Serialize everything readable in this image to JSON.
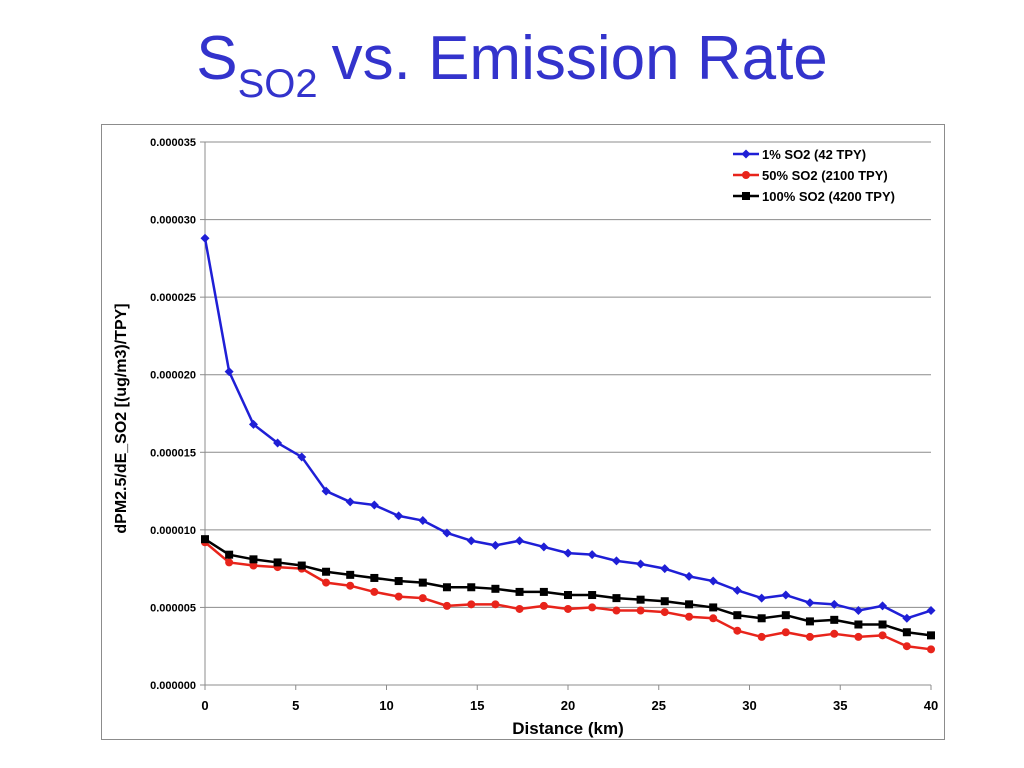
{
  "slide": {
    "title_main": "S",
    "title_sub": "SO2",
    "title_rest": "vs. Emission Rate"
  },
  "chart_data": {
    "type": "line",
    "xlabel": "Distance (km)",
    "ylabel": "dPM2.5/dE_SO2 [(ug/m3)/TPY]",
    "xlim": [
      0,
      40
    ],
    "ylim": [
      0,
      3.5e-05
    ],
    "x_ticks": [
      0,
      5,
      10,
      15,
      20,
      25,
      30,
      35,
      40
    ],
    "y_ticks": [
      0,
      5e-06,
      1e-05,
      1.5e-05,
      2e-05,
      2.5e-05,
      3e-05,
      3.5e-05
    ],
    "y_tick_labels": [
      "0.000000",
      "0.000005",
      "0.000010",
      "0.000015",
      "0.000020",
      "0.000025",
      "0.000030",
      "0.000035"
    ],
    "grid": "horizontal",
    "legend_position": "top-right",
    "x": [
      0,
      1.33,
      2.67,
      4,
      5.33,
      6.67,
      8,
      9.33,
      10.67,
      12,
      13.33,
      14.67,
      16,
      17.33,
      18.67,
      20,
      21.33,
      22.67,
      24,
      25.33,
      26.67,
      28,
      29.33,
      30.67,
      32,
      33.33,
      34.67,
      36,
      37.33,
      38.67,
      40
    ],
    "series": [
      {
        "name": "1% SO2 (42 TPY)",
        "color": "#1f1fd6",
        "marker": "diamond",
        "values": [
          2.88e-05,
          2.02e-05,
          1.68e-05,
          1.56e-05,
          1.47e-05,
          1.25e-05,
          1.18e-05,
          1.16e-05,
          1.09e-05,
          1.06e-05,
          9.8e-06,
          9.3e-06,
          9e-06,
          9.3e-06,
          8.9e-06,
          8.5e-06,
          8.4e-06,
          8e-06,
          7.8e-06,
          7.5e-06,
          7e-06,
          6.7e-06,
          6.1e-06,
          5.6e-06,
          5.8e-06,
          5.3e-06,
          5.2e-06,
          4.8e-06,
          5.1e-06,
          4.3e-06,
          4.8e-06
        ]
      },
      {
        "name": "50% SO2 (2100 TPY)",
        "color": "#e8241b",
        "marker": "circle",
        "values": [
          9.2e-06,
          7.9e-06,
          7.7e-06,
          7.6e-06,
          7.5e-06,
          6.6e-06,
          6.4e-06,
          6e-06,
          5.7e-06,
          5.6e-06,
          5.1e-06,
          5.2e-06,
          5.2e-06,
          4.9e-06,
          5.1e-06,
          4.9e-06,
          5e-06,
          4.8e-06,
          4.8e-06,
          4.7e-06,
          4.4e-06,
          4.3e-06,
          3.5e-06,
          3.1e-06,
          3.4e-06,
          3.1e-06,
          3.3e-06,
          3.1e-06,
          3.2e-06,
          2.5e-06,
          2.3e-06
        ]
      },
      {
        "name": "100% SO2 (4200 TPY)",
        "color": "#000000",
        "marker": "square",
        "values": [
          9.4e-06,
          8.4e-06,
          8.1e-06,
          7.9e-06,
          7.7e-06,
          7.3e-06,
          7.1e-06,
          6.9e-06,
          6.7e-06,
          6.6e-06,
          6.3e-06,
          6.3e-06,
          6.2e-06,
          6e-06,
          6e-06,
          5.8e-06,
          5.8e-06,
          5.6e-06,
          5.5e-06,
          5.4e-06,
          5.2e-06,
          5e-06,
          4.5e-06,
          4.3e-06,
          4.5e-06,
          4.1e-06,
          4.2e-06,
          3.9e-06,
          3.9e-06,
          3.4e-06,
          3.2e-06
        ]
      }
    ]
  }
}
